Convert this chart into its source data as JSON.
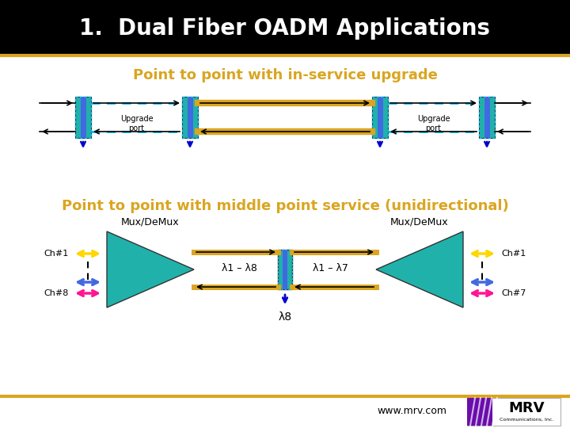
{
  "title": "1.  Dual Fiber OADM Applications",
  "title_bg": "#000000",
  "title_color": "#ffffff",
  "section1_title": "Point to point with in-service upgrade",
  "section2_title": "Point to point with middle point service (unidirectional)",
  "section_title_color": "#DAA520",
  "bg_color": "#ffffff",
  "gold_line_color": "#DAA520",
  "teal_box_color": "#20B2AA",
  "blue_box_color": "#4169E1",
  "cyan_dash_color": "#00BFFF",
  "arrow_color": "#000000",
  "blue_arrow_color": "#0000CD",
  "upgrade_label": "Upgrade\nport",
  "mux_label": "Mux/DeMux",
  "lambda_label1": "λ1 – λ8",
  "lambda_label2": "λ1 – λ7",
  "lambda_label3": "λ8",
  "ch1_label": "Ch#1",
  "ch8_label": "Ch#8",
  "ch1r_label": "Ch#1",
  "ch7r_label": "Ch#7",
  "www_label": "www.mrv.com",
  "footer_color": "#DAA520",
  "yellow_arrow": "#FFD700",
  "blue_ch_arrow": "#4169E1",
  "pink_arrow": "#FF1493"
}
